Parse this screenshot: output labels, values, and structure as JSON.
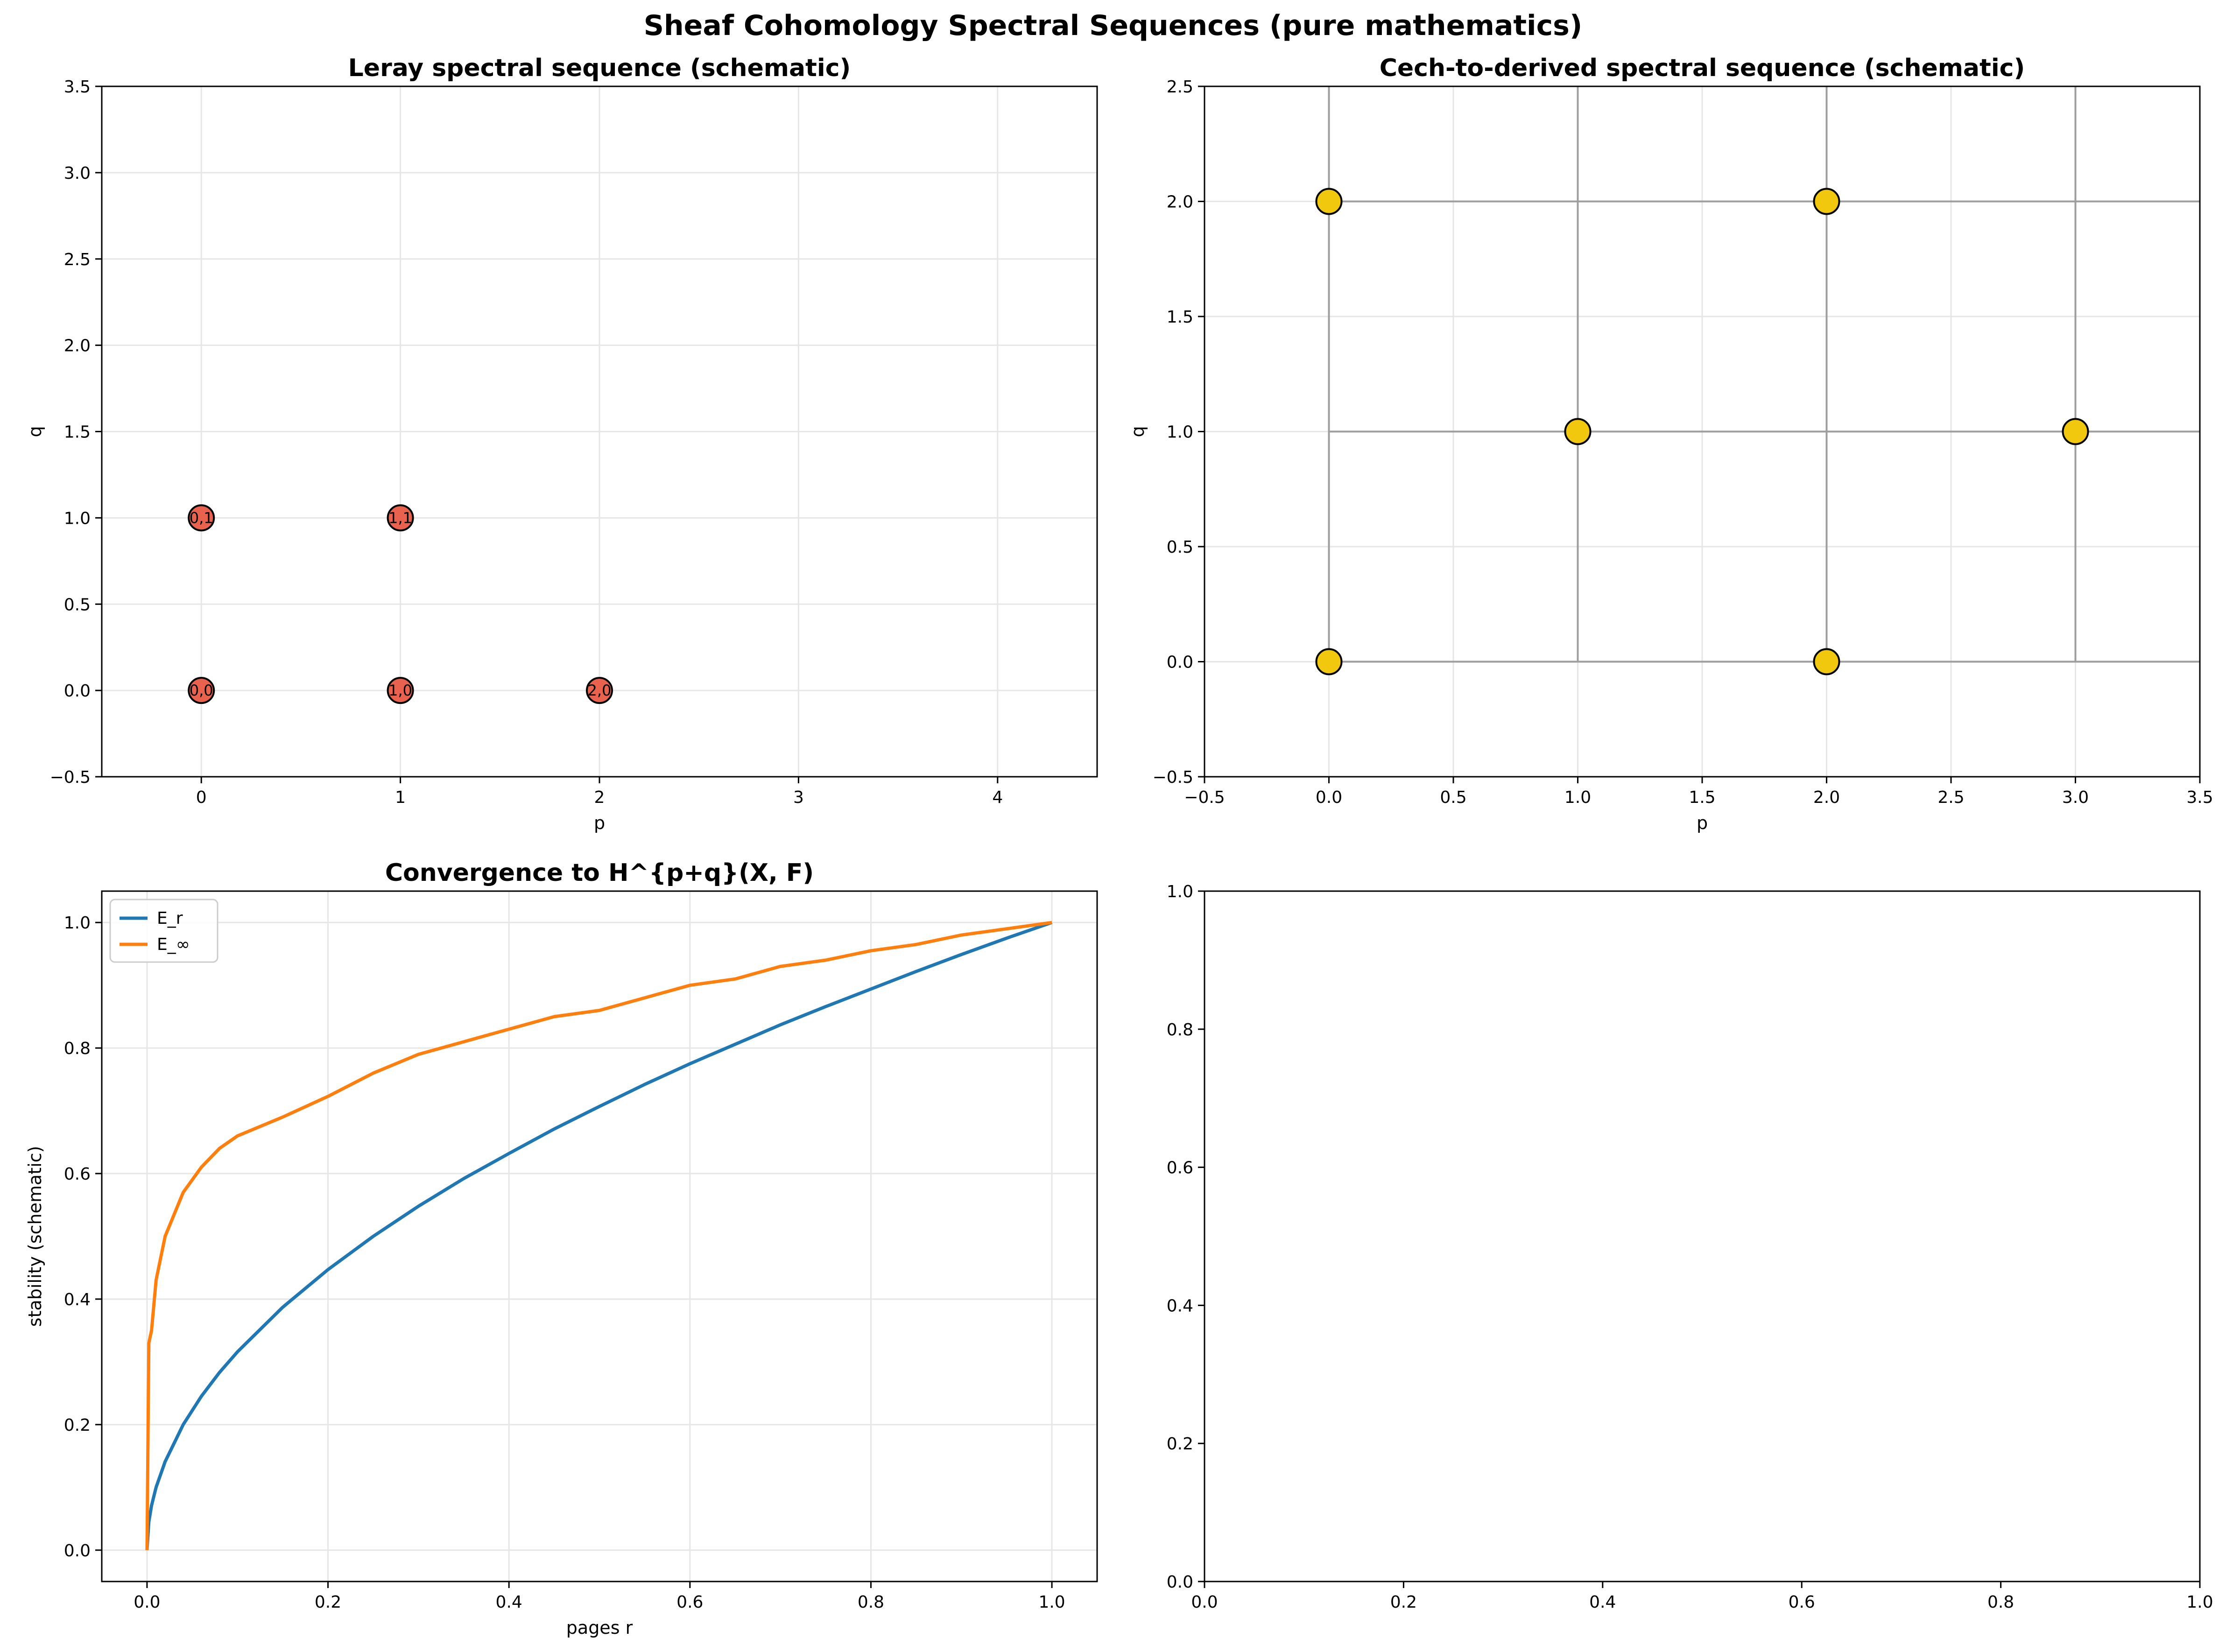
{
  "figure": {
    "suptitle": "Sheaf Cohomology Spectral Sequences (pure mathematics)"
  },
  "chart_data": [
    {
      "type": "scatter",
      "title": "Leray spectral sequence (schematic)",
      "xlabel": "p",
      "ylabel": "q",
      "xlim": [
        -0.5,
        4.5
      ],
      "ylim": [
        -0.5,
        3.5
      ],
      "xticks": [
        0,
        1,
        2,
        3,
        4
      ],
      "yticks": [
        -0.5,
        0.0,
        0.5,
        1.0,
        1.5,
        2.0,
        2.5,
        3.0,
        3.5
      ],
      "grid": true,
      "marker_color": "#e8624e",
      "points": [
        {
          "x": 0,
          "y": 0,
          "label": "0,0"
        },
        {
          "x": 1,
          "y": 0,
          "label": "1,0"
        },
        {
          "x": 2,
          "y": 0,
          "label": "2,0"
        },
        {
          "x": 0,
          "y": 1,
          "label": "0,1"
        },
        {
          "x": 1,
          "y": 1,
          "label": "1,1"
        }
      ]
    },
    {
      "type": "scatter",
      "title": "Cech-to-derived spectral sequence (schematic)",
      "xlabel": "p",
      "ylabel": "q",
      "xlim": [
        -0.5,
        3.5
      ],
      "ylim": [
        -0.5,
        2.5
      ],
      "xticks": [
        -0.5,
        0.0,
        0.5,
        1.0,
        1.5,
        2.0,
        2.5,
        3.0,
        3.5
      ],
      "yticks": [
        -0.5,
        0.0,
        0.5,
        1.0,
        1.5,
        2.0,
        2.5
      ],
      "grid": true,
      "marker_color": "#f2c80f",
      "lines_color": "#9e9e9e",
      "h_lines": [
        {
          "y": 0,
          "x0": 0,
          "x1": 3.5
        },
        {
          "y": 1,
          "x0": 0,
          "x1": 3.5
        },
        {
          "y": 2,
          "x0": 0,
          "x1": 3.5
        }
      ],
      "v_lines": [
        {
          "x": 0,
          "y0": 0,
          "y1": 2.5
        },
        {
          "x": 1,
          "y0": 0,
          "y1": 2.5
        },
        {
          "x": 2,
          "y0": 0,
          "y1": 2.5
        },
        {
          "x": 3,
          "y0": 0,
          "y1": 2.5
        }
      ],
      "points": [
        {
          "x": 0,
          "y": 0
        },
        {
          "x": 2,
          "y": 0
        },
        {
          "x": 1,
          "y": 1
        },
        {
          "x": 3,
          "y": 1
        },
        {
          "x": 0,
          "y": 2
        },
        {
          "x": 2,
          "y": 2
        }
      ]
    },
    {
      "type": "line",
      "title": "Convergence to H^{p+q}(X, F)",
      "xlabel": "pages r",
      "ylabel": "stability (schematic)",
      "xlim": [
        -0.05,
        1.05
      ],
      "ylim": [
        -0.05,
        1.05
      ],
      "xticks": [
        0.0,
        0.2,
        0.4,
        0.6,
        0.8,
        1.0
      ],
      "yticks": [
        0.0,
        0.2,
        0.4,
        0.6,
        0.8,
        1.0
      ],
      "grid": true,
      "legend": "top-left",
      "series": [
        {
          "name": "E_r",
          "color": "#1f77b4",
          "points": [
            [
              0.0,
              0.0
            ],
            [
              0.002,
              0.045
            ],
            [
              0.005,
              0.071
            ],
            [
              0.01,
              0.1
            ],
            [
              0.02,
              0.141
            ],
            [
              0.04,
              0.2
            ],
            [
              0.06,
              0.245
            ],
            [
              0.08,
              0.283
            ],
            [
              0.1,
              0.316
            ],
            [
              0.15,
              0.387
            ],
            [
              0.2,
              0.447
            ],
            [
              0.25,
              0.5
            ],
            [
              0.3,
              0.548
            ],
            [
              0.35,
              0.592
            ],
            [
              0.4,
              0.632
            ],
            [
              0.45,
              0.671
            ],
            [
              0.5,
              0.707
            ],
            [
              0.55,
              0.742
            ],
            [
              0.6,
              0.775
            ],
            [
              0.65,
              0.806
            ],
            [
              0.7,
              0.837
            ],
            [
              0.75,
              0.866
            ],
            [
              0.8,
              0.894
            ],
            [
              0.85,
              0.922
            ],
            [
              0.9,
              0.949
            ],
            [
              0.95,
              0.975
            ],
            [
              1.0,
              1.0
            ]
          ]
        },
        {
          "name": "E_∞",
          "color": "#ff7f0e",
          "points": [
            [
              0.0,
              0.0
            ],
            [
              0.002,
              0.33
            ],
            [
              0.005,
              0.35
            ],
            [
              0.01,
              0.43
            ],
            [
              0.02,
              0.5
            ],
            [
              0.04,
              0.57
            ],
            [
              0.06,
              0.61
            ],
            [
              0.08,
              0.64
            ],
            [
              0.1,
              0.66
            ],
            [
              0.15,
              0.69
            ],
            [
              0.2,
              0.723
            ],
            [
              0.25,
              0.76
            ],
            [
              0.3,
              0.79
            ],
            [
              0.35,
              0.81
            ],
            [
              0.4,
              0.83
            ],
            [
              0.45,
              0.85
            ],
            [
              0.5,
              0.86
            ],
            [
              0.55,
              0.88
            ],
            [
              0.6,
              0.9
            ],
            [
              0.65,
              0.91
            ],
            [
              0.7,
              0.93
            ],
            [
              0.75,
              0.94
            ],
            [
              0.8,
              0.955
            ],
            [
              0.85,
              0.965
            ],
            [
              0.9,
              0.98
            ],
            [
              0.95,
              0.99
            ],
            [
              1.0,
              1.0
            ]
          ]
        }
      ]
    },
    {
      "type": "line",
      "title": "",
      "xlabel": "",
      "ylabel": "",
      "xlim": [
        0.0,
        1.0
      ],
      "ylim": [
        0.0,
        1.0
      ],
      "xticks": [
        0.0,
        0.2,
        0.4,
        0.6,
        0.8,
        1.0
      ],
      "yticks": [
        0.0,
        0.2,
        0.4,
        0.6,
        0.8,
        1.0
      ],
      "grid": false,
      "series": []
    }
  ]
}
